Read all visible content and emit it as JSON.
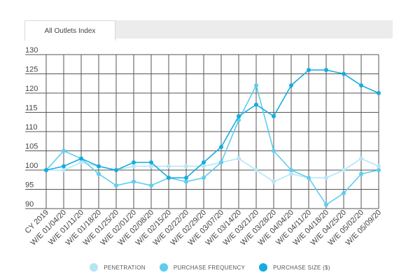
{
  "tab": {
    "label": "All Outlets Index"
  },
  "chart_data": {
    "type": "line",
    "categories": [
      "CY 2019",
      "W/E 01/04/20",
      "W/E 01/11/20",
      "W/E 01/18/20",
      "W/E 01/25/20",
      "W/E 02/01/20",
      "W/E 02/08/20",
      "W/E 02/15/20",
      "W/E 02/22/20",
      "W/E 02/29/20",
      "W/E 03/07/20",
      "W/E 03/14/20",
      "W/E 03/21/20",
      "W/E 03/28/20",
      "W/E 04/04/20",
      "W/E 04/11/20",
      "W/E 04/18/20",
      "W/E 04/25/20",
      "W/E 05/02/20",
      "W/E 05/09/20"
    ],
    "yticks": [
      90,
      95,
      100,
      105,
      110,
      115,
      120,
      125,
      130
    ],
    "ylim": [
      90,
      130
    ],
    "grid": true,
    "legend_position": "bottom-center",
    "series": [
      {
        "name": "PENETRATION",
        "color": "#b4e5f6",
        "values": [
          100,
          100,
          102,
          101,
          100,
          101,
          101,
          101,
          101,
          101,
          102,
          103,
          100,
          97,
          99,
          98,
          98,
          100,
          103,
          101
        ]
      },
      {
        "name": "PURCHASE FREQUENCY",
        "color": "#5ccdef",
        "values": [
          100,
          105,
          103,
          99,
          96,
          97,
          96,
          98,
          97,
          98,
          102,
          113,
          122,
          105,
          100,
          98,
          91,
          94,
          99,
          100
        ]
      },
      {
        "name": "PURCHASE SIZE ($)",
        "color": "#15acdf",
        "values": [
          100,
          101,
          103,
          101,
          100,
          102,
          102,
          98,
          98,
          102,
          106,
          114,
          117,
          114,
          122,
          126,
          126,
          125,
          122,
          120
        ]
      }
    ]
  }
}
